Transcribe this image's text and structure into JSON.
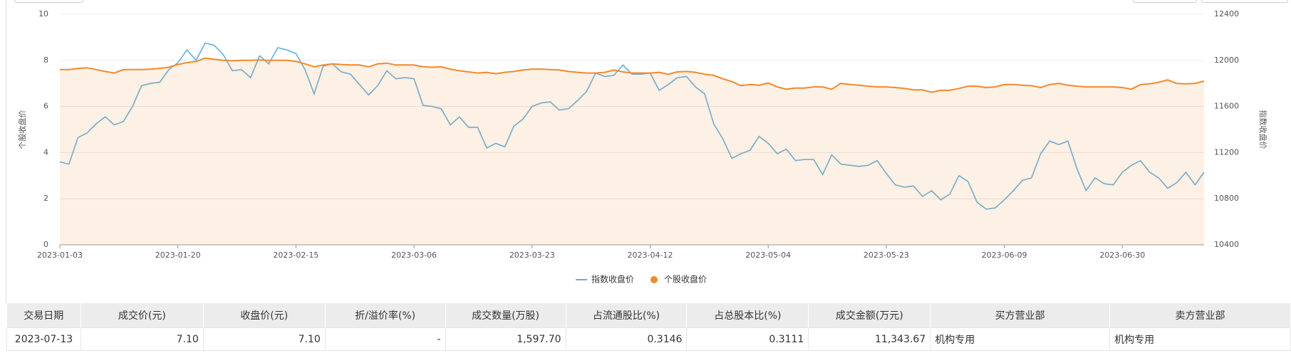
{
  "chart_data": {
    "type": "line",
    "y_label": "个股收盘价",
    "y2_label": "指数收盘价",
    "categories": [
      "2023-01-03",
      null,
      null,
      null,
      null,
      null,
      null,
      null,
      null,
      null,
      null,
      null,
      null,
      "2023-01-20",
      null,
      null,
      null,
      null,
      null,
      null,
      null,
      null,
      null,
      null,
      null,
      null,
      "2023-02-15",
      null,
      null,
      null,
      null,
      null,
      null,
      null,
      null,
      null,
      null,
      null,
      null,
      "2023-03-06",
      null,
      null,
      null,
      null,
      null,
      null,
      null,
      null,
      null,
      null,
      null,
      null,
      "2023-03-23",
      null,
      null,
      null,
      null,
      null,
      null,
      null,
      null,
      null,
      null,
      null,
      null,
      "2023-04-12",
      null,
      null,
      null,
      null,
      null,
      null,
      null,
      null,
      null,
      null,
      null,
      null,
      "2023-05-04",
      null,
      null,
      null,
      null,
      null,
      null,
      null,
      null,
      null,
      null,
      null,
      null,
      "2023-05-23",
      null,
      null,
      null,
      null,
      null,
      null,
      null,
      null,
      null,
      null,
      null,
      null,
      "2023-06-09",
      null,
      null,
      null,
      null,
      null,
      null,
      null,
      null,
      null,
      null,
      null,
      null,
      "2023-06-30",
      null,
      null,
      null,
      null,
      null,
      null,
      null,
      null,
      null
    ],
    "series": [
      {
        "name": "指数收盘价",
        "color": "#65afe0",
        "axis": "y2",
        "values": [
          11120,
          11100,
          11330,
          11370,
          11450,
          11510,
          11440,
          11470,
          11600,
          11780,
          11800,
          11810,
          11920,
          11980,
          12090,
          12000,
          12150,
          12130,
          12050,
          11910,
          11920,
          11850,
          12040,
          11970,
          12110,
          12090,
          12060,
          11920,
          11710,
          11950,
          11970,
          11900,
          11880,
          11790,
          11700,
          11780,
          11910,
          11840,
          11850,
          11840,
          11610,
          11600,
          11580,
          11440,
          11510,
          11420,
          11420,
          11240,
          11280,
          11250,
          11430,
          11490,
          11600,
          11630,
          11640,
          11570,
          11580,
          11650,
          11730,
          11890,
          11860,
          11870,
          11960,
          11880,
          11880,
          11890,
          11740,
          11790,
          11850,
          11860,
          11770,
          11710,
          11450,
          11320,
          11150,
          11190,
          11220,
          11340,
          11280,
          11190,
          11230,
          11130,
          11140,
          11140,
          11010,
          11180,
          11100,
          11090,
          11080,
          11090,
          11130,
          11020,
          10920,
          10900,
          10910,
          10820,
          10870,
          10790,
          10840,
          11000,
          10950,
          10770,
          10710,
          10720,
          10790,
          10870,
          10960,
          10980,
          11190,
          11300,
          11270,
          11300,
          11060,
          10870,
          10980,
          10930,
          10920,
          11030,
          11090,
          11130,
          11030,
          10980,
          10890,
          10940,
          11030,
          10920,
          11030
        ]
      },
      {
        "name": "个股收盘价",
        "color": "#f08a2c",
        "area": true,
        "values": [
          7.6,
          7.6,
          7.65,
          7.68,
          7.6,
          7.52,
          7.45,
          7.6,
          7.6,
          7.6,
          7.62,
          7.65,
          7.7,
          7.82,
          7.9,
          7.95,
          8.1,
          8.05,
          8.0,
          7.98,
          8.0,
          8.0,
          8.02,
          8.0,
          8.0,
          8.0,
          7.95,
          7.85,
          7.72,
          7.8,
          7.85,
          7.82,
          7.8,
          7.8,
          7.72,
          7.85,
          7.88,
          7.8,
          7.8,
          7.8,
          7.72,
          7.7,
          7.72,
          7.62,
          7.55,
          7.5,
          7.45,
          7.48,
          7.42,
          7.48,
          7.52,
          7.58,
          7.62,
          7.62,
          7.6,
          7.58,
          7.52,
          7.48,
          7.45,
          7.45,
          7.48,
          7.58,
          7.5,
          7.45,
          7.45,
          7.45,
          7.48,
          7.4,
          7.5,
          7.52,
          7.48,
          7.4,
          7.35,
          7.2,
          7.08,
          6.9,
          6.95,
          6.92,
          7.02,
          6.85,
          6.75,
          6.8,
          6.8,
          6.85,
          6.85,
          6.75,
          7.0,
          6.95,
          6.92,
          6.88,
          6.85,
          6.85,
          6.82,
          6.78,
          6.72,
          6.72,
          6.62,
          6.7,
          6.7,
          6.78,
          6.88,
          6.88,
          6.82,
          6.85,
          6.95,
          6.95,
          6.92,
          6.9,
          6.82,
          6.95,
          7.0,
          6.92,
          6.88,
          6.85,
          6.85,
          6.85,
          6.85,
          6.82,
          6.75,
          6.95,
          6.98,
          7.05,
          7.15,
          7.0,
          6.98,
          7.0,
          7.1
        ]
      }
    ],
    "ylim": [
      0,
      10
    ],
    "yticks": [
      0,
      2,
      4,
      6,
      8,
      10
    ],
    "y2lim": [
      10400,
      12400
    ],
    "y2ticks": [
      10400,
      10800,
      11200,
      11600,
      12000,
      12400
    ],
    "grid": true,
    "legend": "bottom"
  },
  "table": {
    "headers": [
      "交易日期",
      "成交价(元)",
      "收盘价(元)",
      "折/溢价率(%)",
      "成交数量(万股)",
      "占流通股比(%)",
      "占总股本比(%)",
      "成交金额(万元)",
      "买方营业部",
      "卖方营业部"
    ],
    "rows": [
      [
        "2023-07-13",
        "7.10",
        "7.10",
        "-",
        "1,597.70",
        "0.3146",
        "0.3111",
        "11,343.67",
        "机构专用",
        "机构专用"
      ]
    ]
  }
}
